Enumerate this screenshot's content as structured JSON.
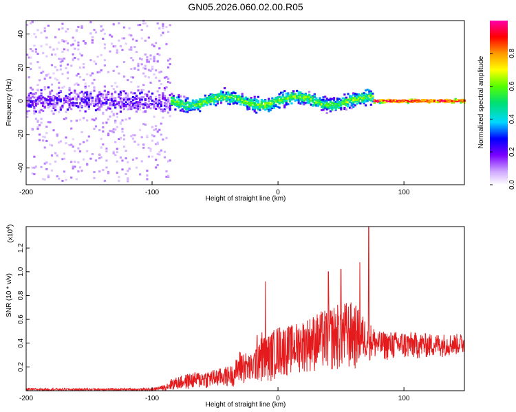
{
  "title": "GN05.2026.060.02.00.R05",
  "chart_data": [
    {
      "type": "heatmap",
      "name": "spectrogram",
      "xlabel": "Height of straight line (km)",
      "ylabel": "Frequency (Hz)",
      "xlim": [
        -200,
        148
      ],
      "ylim": [
        -50,
        48
      ],
      "x_ticks": [
        -200,
        -100,
        0,
        100
      ],
      "x_tick_labels": [
        "-200",
        "-100",
        "0",
        "100"
      ],
      "y_ticks": [
        -40,
        -20,
        0,
        20,
        40
      ],
      "y_tick_labels": [
        "-40",
        "-20",
        "0",
        "20",
        "40"
      ],
      "regions": [
        {
          "x_range": [
            -200,
            -86
          ],
          "freq_spread_hz": 48,
          "dominant_amplitude": 0.05,
          "core_amplitude": 0.18
        },
        {
          "x_range": [
            -86,
            75
          ],
          "freq_spread_hz": 10,
          "dominant_amplitude": 0.45,
          "core_amplitude": 0.6
        },
        {
          "x_range": [
            75,
            148
          ],
          "freq_spread_hz": 2,
          "dominant_amplitude": 0.9,
          "core_amplitude": 0.95
        }
      ]
    },
    {
      "type": "colorbar",
      "name": "amplitude-colorbar",
      "label": "Normalized spectral amplitude",
      "range": [
        0.0,
        1.0
      ],
      "ticks": [
        0.0,
        0.2,
        0.4,
        0.6,
        0.8
      ],
      "tick_labels": [
        "0.0",
        "0.2",
        "0.4",
        "0.6",
        "0.8"
      ]
    },
    {
      "type": "line",
      "name": "snr",
      "color": "#e41a1c",
      "xlabel": "Height of straight line (km)",
      "ylabel": "SNR (10 * v/v)",
      "multiplier_label": "(x10",
      "multiplier_exponent": "4",
      "xlim": [
        -200,
        148
      ],
      "ylim": [
        0,
        1.38
      ],
      "x_ticks": [
        -200,
        -100,
        0,
        100
      ],
      "x_tick_labels": [
        "-200",
        "-100",
        "0",
        "100"
      ],
      "y_ticks": [
        0.2,
        0.4,
        0.6,
        0.8,
        1.0,
        1.2
      ],
      "y_tick_labels": [
        "0.2",
        "0.4",
        "0.6",
        "0.8",
        "1.0",
        "1.2"
      ],
      "envelope": {
        "x": [
          -200,
          -150,
          -100,
          -90,
          -85,
          -70,
          -50,
          -35,
          -30,
          -20,
          -15,
          -10,
          0,
          10,
          20,
          30,
          40,
          50,
          60,
          70,
          75,
          80,
          100,
          120,
          148
        ],
        "y": [
          0.02,
          0.02,
          0.02,
          0.05,
          0.1,
          0.15,
          0.18,
          0.22,
          0.35,
          0.3,
          0.55,
          0.45,
          0.55,
          0.55,
          0.6,
          0.65,
          0.7,
          0.75,
          0.75,
          0.6,
          0.55,
          0.5,
          0.5,
          0.48,
          0.48
        ]
      },
      "floor": {
        "x": [
          -200,
          -100,
          -85,
          -50,
          -20,
          -10,
          0,
          20,
          40,
          60,
          70,
          75,
          100,
          148
        ],
        "y": [
          0.0,
          0.0,
          0.0,
          0.02,
          0.05,
          0.05,
          0.1,
          0.15,
          0.15,
          0.15,
          0.25,
          0.25,
          0.25,
          0.3
        ]
      },
      "spikes": [
        {
          "x": -10,
          "y": 0.92
        },
        {
          "x": 40,
          "y": 1.0
        },
        {
          "x": 50,
          "y": 1.02
        },
        {
          "x": 65,
          "y": 1.08
        },
        {
          "x": 72,
          "y": 1.38
        }
      ]
    }
  ]
}
